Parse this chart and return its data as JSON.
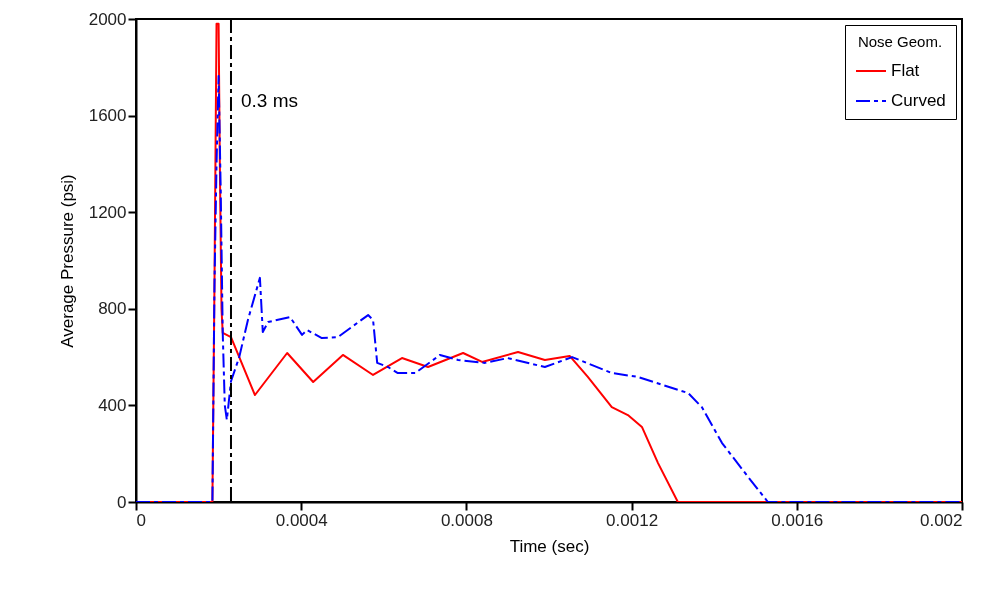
{
  "chart_data": {
    "type": "line",
    "xlabel": "Time (sec)",
    "ylabel": "Average Pressure (psi)",
    "legend_title": "Nose Geom.",
    "legend": "top right",
    "grid": false,
    "xlim": [
      0,
      0.002
    ],
    "xticks": [
      0,
      0.0004,
      0.0008,
      0.0012,
      0.0016,
      0.002
    ],
    "ylim": [
      0,
      2000
    ],
    "yticks": [
      0,
      400,
      800,
      1200,
      1600,
      2000
    ],
    "ref_lines": [
      {
        "axis": "x",
        "value": 0.00023,
        "label": "0.3 ms",
        "color": "#000000",
        "line_style": "dashed"
      }
    ],
    "series": [
      {
        "name": "Flat",
        "color": "#ff0000",
        "line_style": "solid",
        "x": [
          0,
          0.000185,
          0.00019,
          0.000195,
          0.0002,
          0.000203,
          0.000207,
          0.00021,
          0.00023,
          0.000288,
          0.000366,
          0.000429,
          0.000501,
          0.000574,
          0.000644,
          0.000707,
          0.000792,
          0.000838,
          0.000925,
          0.00099,
          0.00105,
          0.001094,
          0.001152,
          0.001191,
          0.001225,
          0.001264,
          0.001312,
          0.002
        ],
        "values": [
          0,
          0,
          900,
          1980,
          1980,
          1400,
          800,
          700,
          683,
          443,
          617,
          497,
          609,
          526,
          596,
          559,
          617,
          580,
          621,
          588,
          605,
          518,
          393,
          360,
          311,
          161,
          0,
          0
        ]
      },
      {
        "name": "Curved",
        "color": "#0000ff",
        "line_style": "dashed",
        "x": [
          0,
          0.000185,
          0.00019,
          0.000195,
          0.0002,
          0.000205,
          0.00021,
          0.000215,
          0.00022,
          0.00023,
          0.00025,
          0.000271,
          0.0003,
          0.000307,
          0.00032,
          0.000373,
          0.000402,
          0.000414,
          0.00045,
          0.000489,
          0.000562,
          0.000574,
          0.000584,
          0.00061,
          0.000634,
          0.000676,
          0.000736,
          0.00078,
          0.000845,
          0.0009,
          0.00099,
          0.001056,
          0.001152,
          0.001215,
          0.001337,
          0.00137,
          0.001419,
          0.001482,
          0.00153,
          0.002
        ],
        "values": [
          0,
          0,
          900,
          1400,
          1764,
          1300,
          700,
          400,
          340,
          500,
          600,
          754,
          928,
          704,
          745,
          766,
          692,
          712,
          679,
          683,
          774,
          754,
          576,
          559,
          534,
          534,
          609,
          588,
          576,
          596,
          559,
          600,
          534,
          518,
          451,
          393,
          244,
          104,
          0,
          0
        ]
      }
    ]
  }
}
